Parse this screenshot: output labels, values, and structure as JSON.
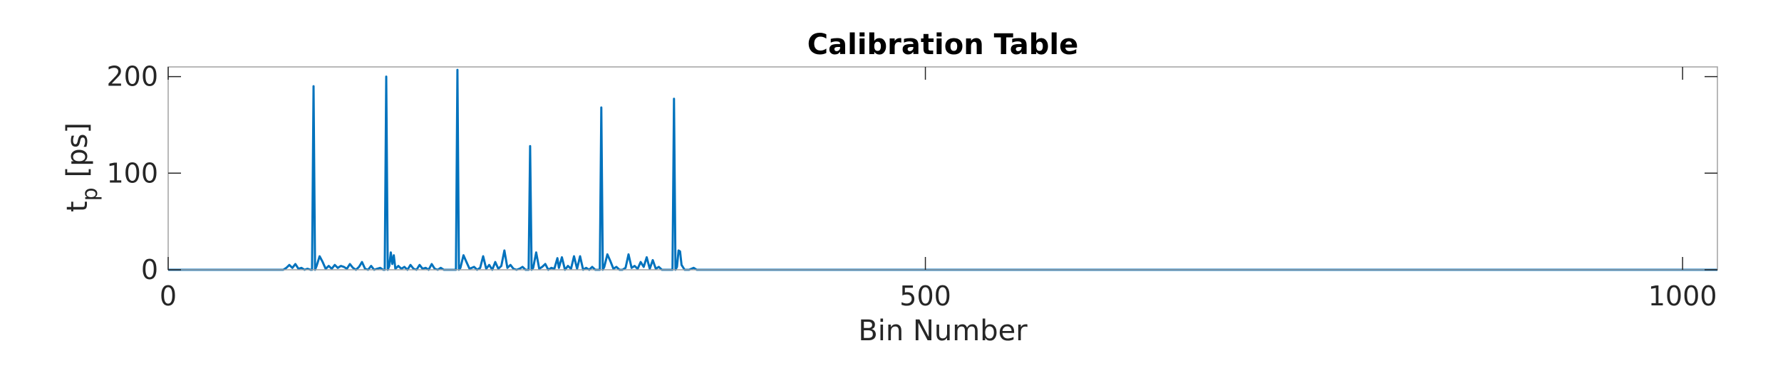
{
  "chart_data": {
    "type": "line",
    "title": "Calibration Table",
    "xlabel": "Bin Number",
    "ylabel": "t",
    "ylabel_subscript": "p",
    "ylabel_unit": "[ps]",
    "xlim": [
      0,
      1023
    ],
    "ylim": [
      0,
      210
    ],
    "xticks": [
      0,
      500,
      1000
    ],
    "yticks": [
      0,
      100,
      200
    ],
    "grid": false,
    "line_color": "#0072bd",
    "axes_color": "#a0a0a0",
    "series": [
      {
        "points": [
          [
            0,
            0
          ],
          [
            76,
            0
          ],
          [
            78,
            2
          ],
          [
            80,
            5
          ],
          [
            82,
            2
          ],
          [
            84,
            6
          ],
          [
            86,
            1
          ],
          [
            88,
            2
          ],
          [
            90,
            0
          ],
          [
            92,
            1
          ],
          [
            94,
            0
          ],
          [
            95,
            0
          ],
          [
            96,
            190
          ],
          [
            97,
            0
          ],
          [
            98,
            4
          ],
          [
            100,
            14
          ],
          [
            102,
            8
          ],
          [
            104,
            1
          ],
          [
            106,
            4
          ],
          [
            108,
            1
          ],
          [
            110,
            5
          ],
          [
            112,
            2
          ],
          [
            114,
            4
          ],
          [
            116,
            3
          ],
          [
            118,
            1
          ],
          [
            120,
            6
          ],
          [
            122,
            2
          ],
          [
            124,
            0
          ],
          [
            126,
            3
          ],
          [
            128,
            8
          ],
          [
            130,
            1
          ],
          [
            132,
            0
          ],
          [
            134,
            4
          ],
          [
            136,
            0
          ],
          [
            138,
            1
          ],
          [
            140,
            2
          ],
          [
            142,
            0
          ],
          [
            143,
            0
          ],
          [
            144,
            200
          ],
          [
            145,
            0
          ],
          [
            146,
            4
          ],
          [
            147,
            18
          ],
          [
            148,
            6
          ],
          [
            149,
            15
          ],
          [
            150,
            1
          ],
          [
            152,
            4
          ],
          [
            154,
            1
          ],
          [
            156,
            3
          ],
          [
            158,
            0
          ],
          [
            160,
            5
          ],
          [
            162,
            1
          ],
          [
            164,
            0
          ],
          [
            166,
            5
          ],
          [
            168,
            1
          ],
          [
            170,
            2
          ],
          [
            172,
            0
          ],
          [
            174,
            6
          ],
          [
            176,
            1
          ],
          [
            178,
            0
          ],
          [
            180,
            2
          ],
          [
            182,
            0
          ],
          [
            186,
            0
          ],
          [
            189,
            0
          ],
          [
            190,
            0
          ],
          [
            191,
            207
          ],
          [
            192,
            0
          ],
          [
            193,
            2
          ],
          [
            195,
            15
          ],
          [
            197,
            8
          ],
          [
            199,
            1
          ],
          [
            202,
            3
          ],
          [
            204,
            0
          ],
          [
            206,
            2
          ],
          [
            208,
            14
          ],
          [
            210,
            1
          ],
          [
            212,
            5
          ],
          [
            214,
            0
          ],
          [
            216,
            8
          ],
          [
            218,
            1
          ],
          [
            220,
            4
          ],
          [
            222,
            20
          ],
          [
            224,
            2
          ],
          [
            226,
            5
          ],
          [
            228,
            1
          ],
          [
            230,
            0
          ],
          [
            232,
            1
          ],
          [
            234,
            3
          ],
          [
            236,
            0
          ],
          [
            238,
            0
          ],
          [
            239,
            128
          ],
          [
            240,
            0
          ],
          [
            241,
            2
          ],
          [
            243,
            18
          ],
          [
            245,
            1
          ],
          [
            247,
            3
          ],
          [
            249,
            6
          ],
          [
            251,
            0
          ],
          [
            253,
            2
          ],
          [
            255,
            1
          ],
          [
            257,
            12
          ],
          [
            258,
            2
          ],
          [
            260,
            13
          ],
          [
            262,
            0
          ],
          [
            264,
            4
          ],
          [
            266,
            1
          ],
          [
            268,
            14
          ],
          [
            270,
            1
          ],
          [
            272,
            14
          ],
          [
            274,
            0
          ],
          [
            276,
            2
          ],
          [
            278,
            0
          ],
          [
            280,
            3
          ],
          [
            282,
            0
          ],
          [
            284,
            0
          ],
          [
            285,
            0
          ],
          [
            286,
            168
          ],
          [
            287,
            0
          ],
          [
            288,
            3
          ],
          [
            290,
            16
          ],
          [
            292,
            9
          ],
          [
            294,
            1
          ],
          [
            296,
            3
          ],
          [
            298,
            0
          ],
          [
            300,
            0
          ],
          [
            302,
            2
          ],
          [
            304,
            16
          ],
          [
            306,
            2
          ],
          [
            308,
            4
          ],
          [
            310,
            1
          ],
          [
            312,
            8
          ],
          [
            314,
            3
          ],
          [
            316,
            13
          ],
          [
            318,
            1
          ],
          [
            320,
            10
          ],
          [
            322,
            1
          ],
          [
            324,
            3
          ],
          [
            326,
            0
          ],
          [
            328,
            0
          ],
          [
            332,
            0
          ],
          [
            333,
            0
          ],
          [
            334,
            177
          ],
          [
            335,
            0
          ],
          [
            336,
            3
          ],
          [
            337,
            20
          ],
          [
            338,
            19
          ],
          [
            339,
            5
          ],
          [
            341,
            0
          ],
          [
            344,
            0
          ],
          [
            347,
            2
          ],
          [
            349,
            0
          ],
          [
            1023,
            0
          ]
        ]
      }
    ]
  }
}
